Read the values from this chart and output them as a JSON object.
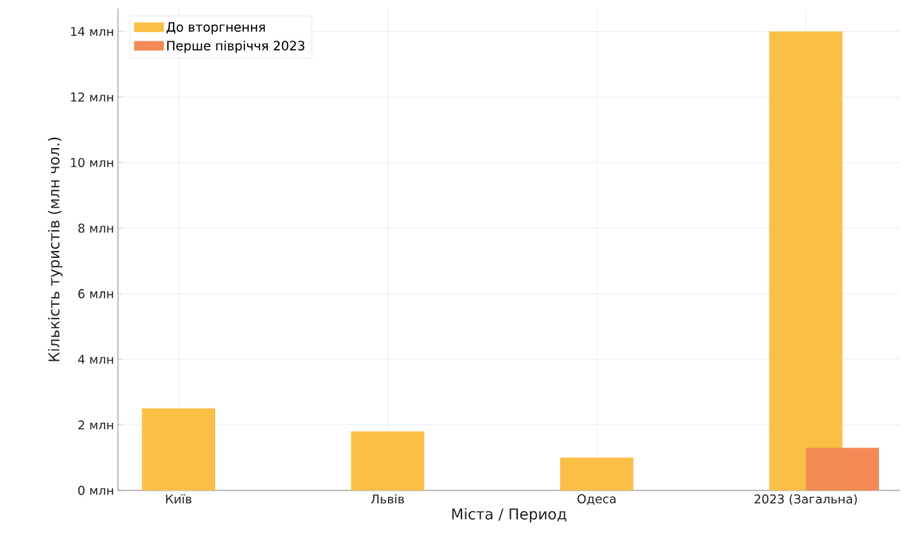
{
  "chart_data": {
    "type": "bar",
    "xlabel": "Міста / Период",
    "ylabel": "Кількість туристів (млн чол.)",
    "categories": [
      "Київ",
      "Львів",
      "Одеса",
      "2023 (Загальна)"
    ],
    "series": [
      {
        "name": "До вторгнення",
        "color": "#fbbf45",
        "values": [
          2.5,
          1.8,
          1.0,
          14
        ]
      },
      {
        "name": "Перше півріччя 2023",
        "color": "#f28a55",
        "values": [
          null,
          null,
          null,
          1.3
        ]
      }
    ],
    "ylim": [
      0,
      14.7
    ],
    "yticks": [
      {
        "value": 0,
        "label": "0 млн"
      },
      {
        "value": 2,
        "label": "2 млн"
      },
      {
        "value": 4,
        "label": "4 млн"
      },
      {
        "value": 6,
        "label": "6 млн"
      },
      {
        "value": 8,
        "label": "8 млн"
      },
      {
        "value": 10,
        "label": "10 млн"
      },
      {
        "value": 12,
        "label": "12 млн"
      },
      {
        "value": 14,
        "label": "14 млн"
      }
    ],
    "grid": true,
    "legend": "top left"
  }
}
